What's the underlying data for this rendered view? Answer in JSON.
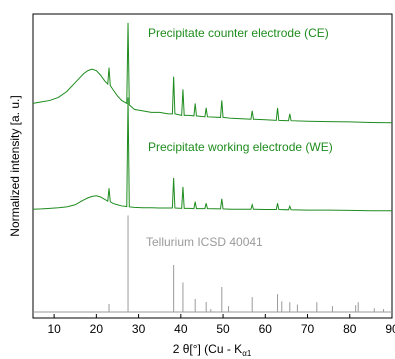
{
  "chart_data": {
    "type": "xrd",
    "xlabel": "2 θ[°] (Cu - K",
    "xlabel_sub": "α1",
    "ylabel": "Normalized intensity [a. u.]",
    "xlim": [
      5,
      90
    ],
    "xticks": [
      10,
      20,
      30,
      40,
      50,
      60,
      70,
      80,
      90
    ],
    "ylim": [
      -2,
      100
    ],
    "x": [
      5,
      7,
      9,
      11,
      13,
      15,
      16,
      17,
      18,
      19,
      20,
      21,
      22,
      22.7,
      23,
      23.3,
      24,
      25,
      26,
      27.2,
      27.5,
      27.8,
      29,
      31,
      33,
      35,
      37,
      38.0,
      38.3,
      38.6,
      40.2,
      40.5,
      40.8,
      42,
      43.1,
      43.4,
      43.7,
      45.7,
      46,
      46.3,
      49.4,
      49.7,
      50,
      52,
      55,
      56.6,
      56.9,
      57.2,
      60,
      62.6,
      62.9,
      63.2,
      65.5,
      65.8,
      66.1,
      70,
      75,
      80,
      85,
      90
    ],
    "series": [
      {
        "name": "Precipitate counter electrode (CE)",
        "color": "#1e8c1e",
        "values": [
          70,
          70.5,
          71,
          72,
          74,
          77,
          78.5,
          80,
          81,
          81.5,
          81,
          79.5,
          77.5,
          76.5,
          82,
          76,
          74.5,
          72.5,
          71,
          70,
          97,
          69.5,
          68,
          67.5,
          67,
          67,
          66.5,
          66.5,
          79,
          66.5,
          66,
          74.7,
          66,
          66,
          65.8,
          70,
          65.8,
          65.5,
          68.5,
          65.5,
          65.3,
          71,
          65.3,
          65,
          64.8,
          64.7,
          67.5,
          64.7,
          64.5,
          64.3,
          68.5,
          64.3,
          64.2,
          66.5,
          64.2,
          64,
          63.9,
          63.8,
          63.6,
          63.5
        ]
      },
      {
        "name": "Precipitate working electrode (WE)",
        "color": "#1e8c1e",
        "values": [
          34.5,
          34.6,
          34.8,
          35,
          35.3,
          36,
          36.8,
          37.6,
          38.3,
          38.8,
          39,
          38.6,
          37.8,
          37.2,
          41.5,
          37,
          36.4,
          36,
          35.6,
          35.4,
          72,
          35.3,
          35.1,
          35,
          35,
          34.9,
          34.9,
          34.9,
          45,
          34.9,
          34.8,
          42,
          34.8,
          34.8,
          34.7,
          37,
          34.7,
          34.7,
          36.5,
          34.7,
          34.6,
          38,
          34.6,
          34.5,
          34.5,
          34.5,
          36,
          34.5,
          34.4,
          34.4,
          36.5,
          34.4,
          34.3,
          35.5,
          34.3,
          34.2,
          34.2,
          34.1,
          34,
          34
        ]
      }
    ],
    "reference": {
      "name": "Tellurium ICSD 40041",
      "color": "#9a9a9a",
      "x": [
        23,
        27.5,
        38.3,
        40.5,
        43.4,
        46,
        47.1,
        49.7,
        51.3,
        56.9,
        62.9,
        63.9,
        65.8,
        67.6,
        72.2,
        75.9,
        81.4,
        82,
        85.8,
        88
      ],
      "values": [
        2.7,
        32.4,
        15.8,
        9.9,
        4.4,
        3.4,
        1,
        8.4,
        2,
        5,
        6,
        3.6,
        3.3,
        2.5,
        3.3,
        2,
        2.3,
        3.3,
        1.3,
        1
      ]
    }
  }
}
